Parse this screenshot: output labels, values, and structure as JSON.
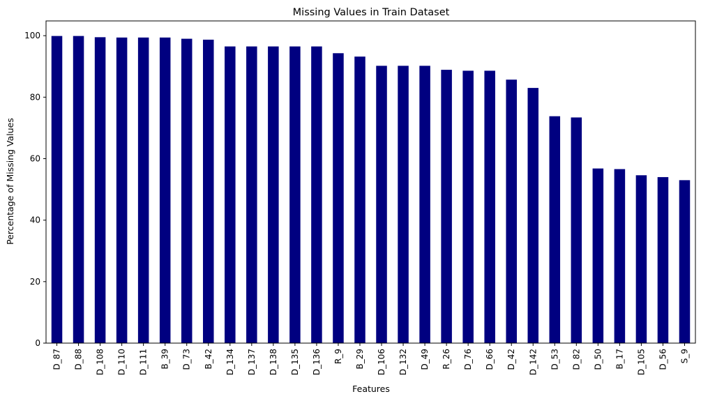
{
  "chart_data": {
    "type": "bar",
    "title": "Missing Values in Train Dataset",
    "xlabel": "Features",
    "ylabel": "Percentage of Missing Values",
    "ylim": [
      0,
      104.8
    ],
    "yticks": [
      0,
      20,
      40,
      60,
      80,
      100
    ],
    "grid": false,
    "legend": "none",
    "bar_color": "#000080",
    "categories": [
      "D_87",
      "D_88",
      "D_108",
      "D_110",
      "D_111",
      "B_39",
      "D_73",
      "B_42",
      "D_134",
      "D_137",
      "D_138",
      "D_135",
      "D_136",
      "R_9",
      "B_29",
      "D_106",
      "D_132",
      "D_49",
      "R_26",
      "D_76",
      "D_66",
      "D_42",
      "D_142",
      "D_53",
      "D_82",
      "D_50",
      "B_17",
      "D_105",
      "D_56",
      "S_9"
    ],
    "values": [
      99.9,
      99.9,
      99.5,
      99.4,
      99.4,
      99.4,
      99.0,
      98.7,
      96.5,
      96.5,
      96.5,
      96.5,
      96.5,
      94.3,
      93.2,
      90.2,
      90.2,
      90.2,
      88.9,
      88.6,
      88.6,
      85.7,
      83.0,
      73.8,
      73.4,
      56.8,
      56.6,
      54.6,
      54.0,
      53.0
    ]
  }
}
